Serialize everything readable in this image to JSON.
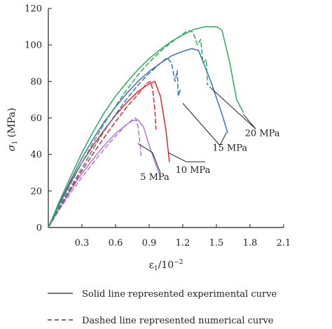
{
  "chart_data": {
    "type": "line",
    "xlabel": "ε1/10−2",
    "xlabel_main": "ε",
    "xlabel_sub": "1",
    "xlabel_rest": "/10",
    "xlabel_sup": "−2",
    "ylabel": "σ1 (MPa)",
    "ylabel_main": "σ",
    "ylabel_sub": "1",
    "ylabel_rest": " (MPa)",
    "xlim": [
      0,
      2.1
    ],
    "ylim": [
      0,
      120
    ],
    "x_ticks": [
      "0.3",
      "0.6",
      "0.9",
      "1.2",
      "1.5",
      "1.8",
      "2.1"
    ],
    "y_ticks": [
      "0",
      "20",
      "40",
      "60",
      "80",
      "100",
      "120"
    ],
    "grid": false,
    "legend": [
      "Solid line represented experimental curve",
      "Dashed line represented numerical curve"
    ],
    "annotations": [
      {
        "text": "5 MPa",
        "x": 0.95,
        "y": 26
      },
      {
        "text": "10 MPa",
        "x": 1.29,
        "y": 30
      },
      {
        "text": "15 MPa",
        "x": 1.62,
        "y": 42
      },
      {
        "text": "20 MPa",
        "x": 1.91,
        "y": 50
      }
    ],
    "series": [
      {
        "group": "5 MPa",
        "style": "solid",
        "color": "#b07ad6",
        "x": [
          0,
          0.1,
          0.2,
          0.3,
          0.4,
          0.5,
          0.6,
          0.7,
          0.75,
          0.8,
          0.85,
          0.9,
          0.95,
          1.0
        ],
        "y": [
          0,
          10.5,
          20.5,
          29.5,
          37.5,
          45,
          51.5,
          56.5,
          58.5,
          59,
          55,
          45,
          36,
          28
        ]
      },
      {
        "group": "5 MPa",
        "style": "dashed",
        "color": "#b07ad6",
        "x": [
          0,
          0.1,
          0.2,
          0.3,
          0.4,
          0.5,
          0.6,
          0.7,
          0.76,
          0.78,
          0.8,
          0.82,
          0.83
        ],
        "y": [
          0,
          10,
          19,
          27.5,
          35.5,
          43,
          50,
          56.5,
          59.5,
          60,
          55,
          45,
          38
        ]
      },
      {
        "group": "10 MPa",
        "style": "solid",
        "color": "#e8252a",
        "x": [
          0,
          0.1,
          0.2,
          0.3,
          0.4,
          0.5,
          0.6,
          0.7,
          0.8,
          0.88,
          0.95,
          1.0,
          1.05,
          1.08
        ],
        "y": [
          0,
          13,
          25,
          35.5,
          45,
          53.5,
          61.5,
          68.5,
          74.5,
          78,
          80,
          72,
          53,
          36
        ]
      },
      {
        "group": "10 MPa",
        "style": "dashed",
        "color": "#e8252a",
        "x": [
          0,
          0.1,
          0.2,
          0.3,
          0.4,
          0.5,
          0.6,
          0.7,
          0.8,
          0.88,
          0.91,
          0.93,
          0.95,
          0.96
        ],
        "y": [
          0,
          10.5,
          21,
          31,
          40.5,
          49.5,
          58,
          66,
          73,
          79,
          80,
          76,
          65,
          54
        ]
      },
      {
        "group": "15 MPa",
        "style": "solid",
        "color": "#3a70c0",
        "x": [
          0,
          0.1,
          0.2,
          0.3,
          0.4,
          0.5,
          0.6,
          0.7,
          0.8,
          0.9,
          1.0,
          1.1,
          1.2,
          1.28,
          1.34,
          1.45,
          1.55,
          1.6
        ],
        "y": [
          0,
          13.5,
          26,
          38,
          48.5,
          58,
          66,
          73.5,
          80,
          85.5,
          90,
          94,
          96.5,
          98,
          97,
          80,
          62,
          52
        ]
      },
      {
        "group": "15 MPa",
        "style": "dashed",
        "color": "#3a70c0",
        "x": [
          0,
          0.1,
          0.2,
          0.3,
          0.4,
          0.5,
          0.6,
          0.7,
          0.8,
          0.9,
          1.0,
          1.06,
          1.1,
          1.13,
          1.15,
          1.16,
          1.18
        ],
        "y": [
          0,
          11,
          22,
          32.5,
          43,
          53,
          62,
          70.5,
          78,
          84.5,
          90,
          93,
          90,
          80,
          86,
          72,
          76
        ]
      },
      {
        "group": "20 MPa",
        "style": "solid",
        "color": "#2daa5a",
        "x": [
          0,
          0.1,
          0.2,
          0.3,
          0.4,
          0.5,
          0.6,
          0.7,
          0.8,
          0.9,
          1.0,
          1.1,
          1.2,
          1.3,
          1.4,
          1.5,
          1.55,
          1.62,
          1.68,
          1.74
        ],
        "y": [
          0,
          14.5,
          28,
          41,
          52.5,
          63,
          72,
          79.5,
          86.5,
          92.5,
          97.5,
          102,
          105.5,
          108.5,
          110,
          110,
          108,
          90,
          70,
          63
        ]
      },
      {
        "group": "20 MPa",
        "style": "dashed",
        "color": "#2daa5a",
        "x": [
          0,
          0.1,
          0.2,
          0.3,
          0.4,
          0.5,
          0.6,
          0.7,
          0.8,
          0.9,
          1.0,
          1.1,
          1.2,
          1.25,
          1.29,
          1.33,
          1.36,
          1.38,
          1.41,
          1.42
        ],
        "y": [
          0,
          12,
          24,
          35.5,
          46.5,
          57,
          66.5,
          75.5,
          83.5,
          90.5,
          96.5,
          101.5,
          106,
          108,
          107,
          100,
          103,
          90,
          92,
          78
        ]
      }
    ]
  }
}
